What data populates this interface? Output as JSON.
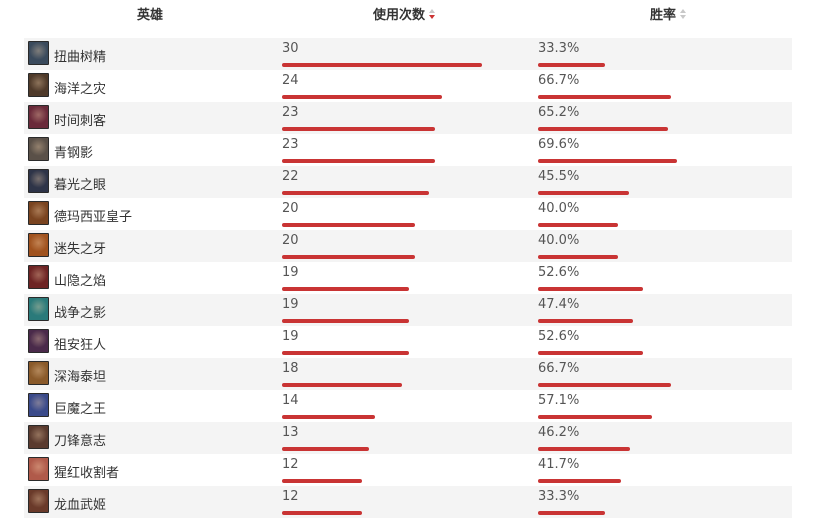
{
  "header": {
    "hero": "英雄",
    "uses": "使用次数",
    "winrate": "胜率",
    "uses_sort": "desc",
    "winrate_sort": "none"
  },
  "colors": {
    "bar": "#c93434",
    "row_alt": "#f4f4f4",
    "sort_active": "#cc3333",
    "sort_inactive": "#c8c8c8"
  },
  "rows": [
    {
      "hero": "扭曲树精",
      "uses": "30",
      "winrate": "33.3%",
      "avatar_color": "#3a4a5c"
    },
    {
      "hero": "海洋之灾",
      "uses": "24",
      "winrate": "66.7%",
      "avatar_color": "#4f3a2a"
    },
    {
      "hero": "时间刺客",
      "uses": "23",
      "winrate": "65.2%",
      "avatar_color": "#6a2a3a"
    },
    {
      "hero": "青钢影",
      "uses": "23",
      "winrate": "69.6%",
      "avatar_color": "#5a5048"
    },
    {
      "hero": "暮光之眼",
      "uses": "22",
      "winrate": "45.5%",
      "avatar_color": "#2e3448"
    },
    {
      "hero": "德玛西亚皇子",
      "uses": "20",
      "winrate": "40.0%",
      "avatar_color": "#7a4420"
    },
    {
      "hero": "迷失之牙",
      "uses": "20",
      "winrate": "40.0%",
      "avatar_color": "#a0521e"
    },
    {
      "hero": "山隐之焰",
      "uses": "19",
      "winrate": "52.6%",
      "avatar_color": "#6e2424"
    },
    {
      "hero": "战争之影",
      "uses": "19",
      "winrate": "47.4%",
      "avatar_color": "#2a7a7a"
    },
    {
      "hero": "祖安狂人",
      "uses": "19",
      "winrate": "52.6%",
      "avatar_color": "#4a2a4a"
    },
    {
      "hero": "深海泰坦",
      "uses": "18",
      "winrate": "66.7%",
      "avatar_color": "#8a5a2a"
    },
    {
      "hero": "巨魔之王",
      "uses": "14",
      "winrate": "57.1%",
      "avatar_color": "#3a4a8a"
    },
    {
      "hero": "刀锋意志",
      "uses": "13",
      "winrate": "46.2%",
      "avatar_color": "#5a3a2e"
    },
    {
      "hero": "猩红收割者",
      "uses": "12",
      "winrate": "41.7%",
      "avatar_color": "#b05a4a"
    },
    {
      "hero": "龙血武姬",
      "uses": "12",
      "winrate": "33.3%",
      "avatar_color": "#6a3a2a"
    }
  ]
}
